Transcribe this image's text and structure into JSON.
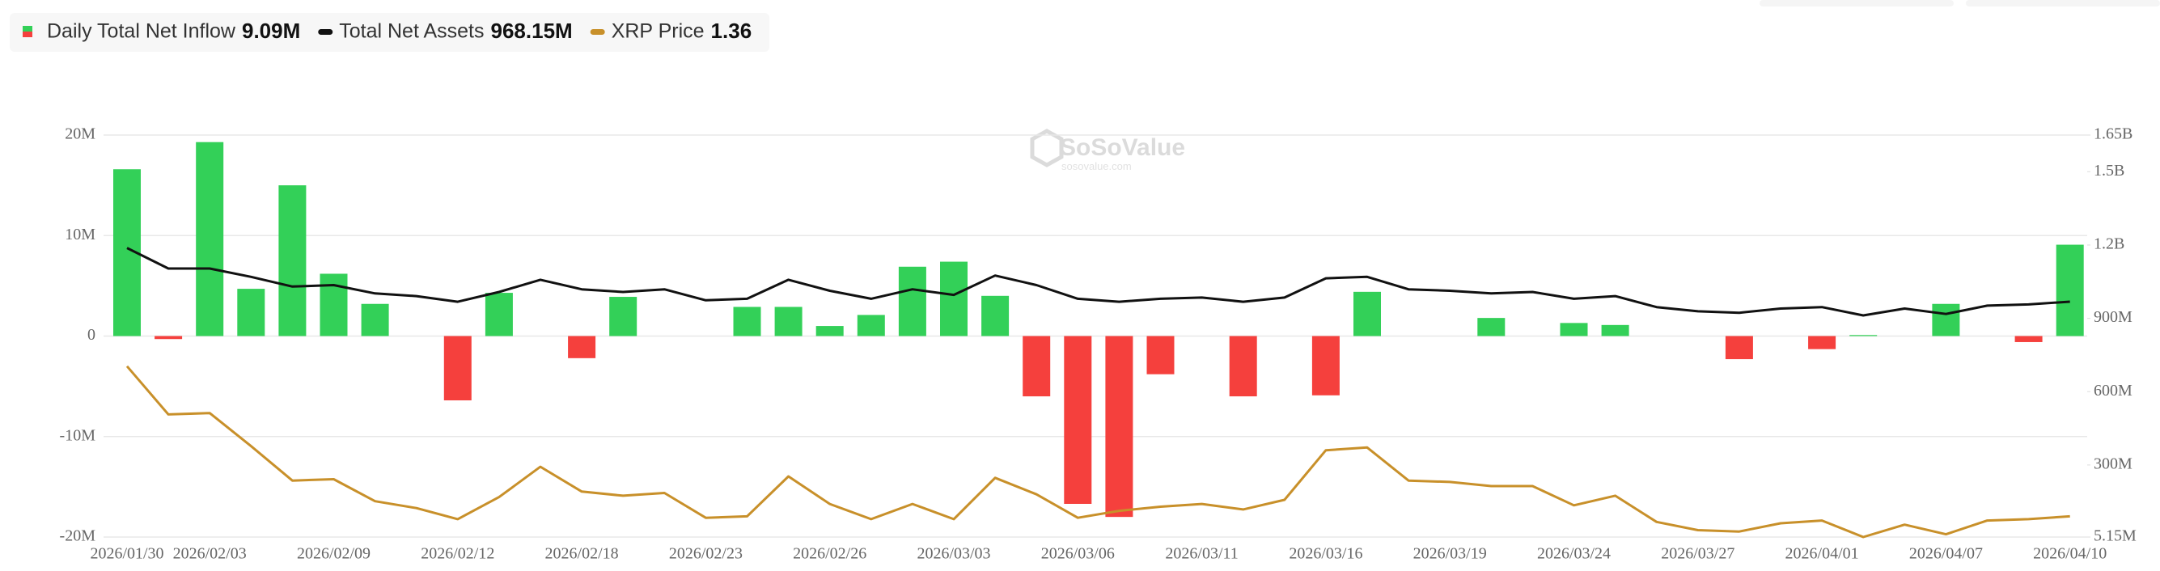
{
  "chart_data": {
    "type": "bar-line",
    "watermark": "SoSoValue",
    "watermark_sub": "sosovalue.com",
    "categories": [
      "2026/01/30",
      null,
      "2026/02/03",
      null,
      null,
      "2026/02/09",
      null,
      null,
      "2026/02/12",
      null,
      null,
      "2026/02/18",
      null,
      null,
      "2026/02/23",
      null,
      null,
      "2026/02/26",
      null,
      null,
      "2026/03/03",
      null,
      null,
      "2026/03/06",
      null,
      null,
      "2026/03/11",
      null,
      null,
      "2026/03/16",
      null,
      null,
      "2026/03/19",
      null,
      null,
      "2026/03/24",
      null,
      null,
      "2026/03/27",
      null,
      null,
      "2026/04/01",
      null,
      null,
      "2026/04/07",
      null,
      null,
      "2026/04/10"
    ],
    "series": [
      {
        "name": "Daily Total Net Inflow",
        "latest_label": "9.09M",
        "type": "bar",
        "positive_color": "#33d058",
        "negative_color": "#f5403d",
        "values": [
          16600000,
          -300000,
          19300000,
          4700000,
          15000000,
          6200000,
          3200000,
          0,
          -6400000,
          4300000,
          0,
          -2200000,
          3900000,
          0,
          0,
          2900000,
          2900000,
          1000000,
          2100000,
          6900000,
          7400000,
          4000000,
          -6000000,
          -16700000,
          -18000000,
          -3800000,
          0,
          -6000000,
          0,
          -5900000,
          4400000,
          0,
          0,
          1800000,
          0,
          1300000,
          1100000,
          0,
          0,
          -2300000,
          0,
          -1300000,
          100000,
          0,
          3200000,
          0,
          -600000,
          9090000
        ]
      },
      {
        "name": "Total Net Assets",
        "latest_label": "968.15M",
        "type": "line",
        "axis": "y2",
        "color": "#111111",
        "values": [
          1188000000,
          1104000000,
          1104000000,
          1070000000,
          1030000000,
          1036000000,
          1002000000,
          991000000,
          968000000,
          1008000000,
          1058000000,
          1019000000,
          1008000000,
          1019000000,
          974000000,
          980000000,
          1058000000,
          1013000000,
          980000000,
          1019000000,
          996000000,
          1075000000,
          1036000000,
          980000000,
          968000000,
          980000000,
          985000000,
          968000000,
          985000000,
          1064000000,
          1070000000,
          1019000000,
          1013000000,
          1002000000,
          1008000000,
          980000000,
          991000000,
          946000000,
          929000000,
          923000000,
          940000000,
          946000000,
          912000000,
          940000000,
          918000000,
          952000000,
          957000000,
          968150000
        ]
      },
      {
        "name": "XRP Price",
        "latest_label": "1.36",
        "type": "line",
        "axis": "hidden",
        "color": "#c8902a",
        "values": [
          1.905,
          1.73,
          1.735,
          1.615,
          1.49,
          1.495,
          1.415,
          1.39,
          1.35,
          1.43,
          1.54,
          1.45,
          1.435,
          1.445,
          1.355,
          1.36,
          1.505,
          1.405,
          1.35,
          1.405,
          1.35,
          1.5,
          1.44,
          1.355,
          1.38,
          1.395,
          1.405,
          1.385,
          1.42,
          1.6,
          1.61,
          1.49,
          1.485,
          1.47,
          1.47,
          1.4,
          1.435,
          1.34,
          1.31,
          1.305,
          1.335,
          1.345,
          1.285,
          1.33,
          1.295,
          1.345,
          1.35,
          1.36
        ]
      }
    ],
    "ylim": [
      -20000000,
      20000000
    ],
    "yticks": [
      {
        "value": -20000000,
        "label": "-20M"
      },
      {
        "value": -10000000,
        "label": "-10M"
      },
      0,
      {
        "value": 10000000,
        "label": "10M"
      },
      {
        "value": 20000000,
        "label": "20M"
      }
    ],
    "y2lim": [
      5150000,
      1650000000
    ],
    "y2ticks": [
      {
        "value": 5150000,
        "label": "5.15M"
      },
      {
        "value": 300000000,
        "label": "300M"
      },
      {
        "value": 600000000,
        "label": "600M"
      },
      {
        "value": 900000000,
        "label": "900M"
      },
      {
        "value": 1200000000,
        "label": "1.2B"
      },
      {
        "value": 1500000000,
        "label": "1.5B"
      },
      {
        "value": 1650000000,
        "label": "1.65B"
      }
    ],
    "grid": true
  }
}
